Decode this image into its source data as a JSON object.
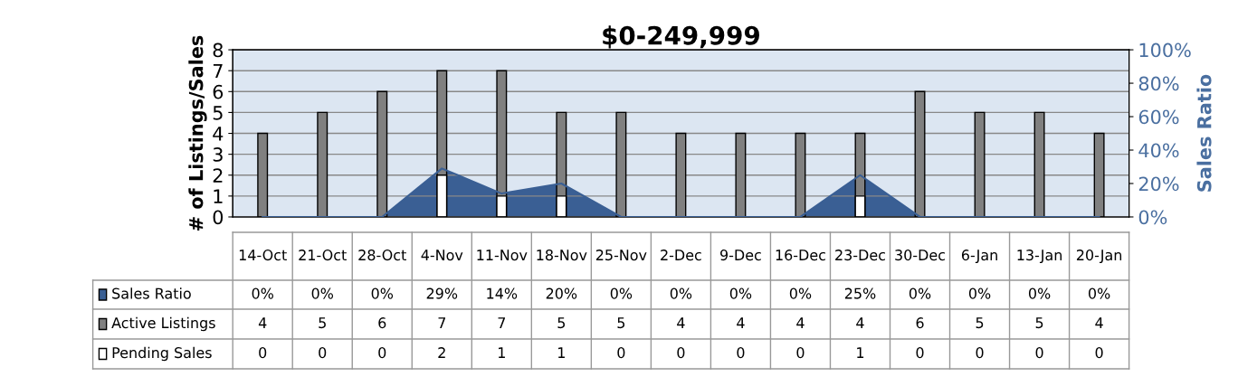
{
  "chart_data": {
    "type": "bar",
    "title": "$0-249,999",
    "categories": [
      "14-Oct",
      "21-Oct",
      "28-Oct",
      "4-Nov",
      "11-Nov",
      "18-Nov",
      "25-Nov",
      "2-Dec",
      "9-Dec",
      "16-Dec",
      "23-Dec",
      "30-Dec",
      "6-Jan",
      "13-Jan",
      "20-Jan"
    ],
    "series": [
      {
        "name": "Sales Ratio",
        "type": "area",
        "axis": "y2",
        "color": "#3a5f94",
        "values": [
          0,
          0,
          0,
          29,
          14,
          20,
          0,
          0,
          0,
          0,
          25,
          0,
          0,
          0,
          0
        ],
        "value_labels": [
          "0%",
          "0%",
          "0%",
          "29%",
          "14%",
          "20%",
          "0%",
          "0%",
          "0%",
          "0%",
          "25%",
          "0%",
          "0%",
          "0%",
          "0%"
        ]
      },
      {
        "name": "Active Listings",
        "color": "#808080",
        "values": [
          4,
          5,
          6,
          7,
          7,
          5,
          5,
          4,
          4,
          4,
          4,
          6,
          5,
          5,
          4
        ],
        "value_labels": [
          "4",
          "5",
          "6",
          "7",
          "7",
          "5",
          "5",
          "4",
          "4",
          "4",
          "4",
          "6",
          "5",
          "5",
          "4"
        ]
      },
      {
        "name": "Pending Sales",
        "color": "#ffffff",
        "values": [
          0,
          0,
          0,
          2,
          1,
          1,
          0,
          0,
          0,
          0,
          1,
          0,
          0,
          0,
          0
        ],
        "value_labels": [
          "0",
          "0",
          "0",
          "2",
          "1",
          "1",
          "0",
          "0",
          "0",
          "0",
          "1",
          "0",
          "0",
          "0",
          "0"
        ]
      }
    ],
    "ylabel": "# of Listings/Sales",
    "y2label": "Sales Ratio",
    "ylim": [
      0,
      8
    ],
    "yticks": [
      0,
      1,
      2,
      3,
      4,
      5,
      6,
      7,
      8
    ],
    "y2lim": [
      0,
      100
    ],
    "y2ticks": [
      {
        "value": 0,
        "label": "0%"
      },
      {
        "value": 20,
        "label": "20%"
      },
      {
        "value": 40,
        "label": "40%"
      },
      {
        "value": 60,
        "label": "60%"
      },
      {
        "value": 80,
        "label": "80%"
      },
      {
        "value": 100,
        "label": "100%"
      }
    ],
    "grid": "y",
    "legend": "bottom"
  }
}
